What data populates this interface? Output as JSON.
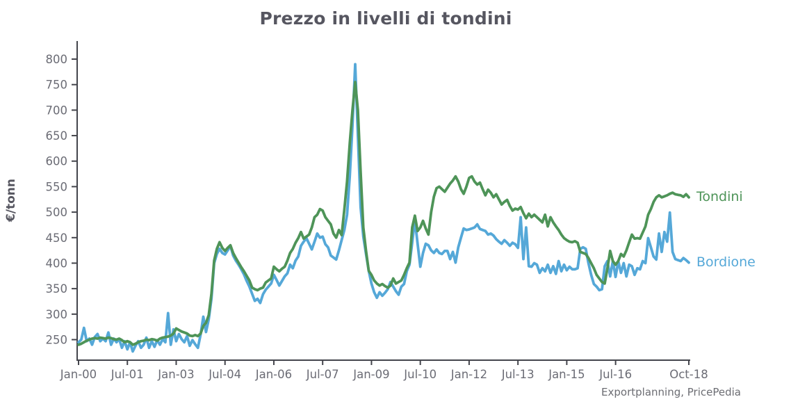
{
  "title": "Prezzo in livelli di tondini",
  "y_axis_label": "€/tonn",
  "attribution": "Exportplanning, PricePedia",
  "colors": {
    "tondini": "#4e9458",
    "bordione": "#55a8d8",
    "axis": "#44454c",
    "tick_text": "#6b6c75",
    "title_text": "#565660"
  },
  "chart_data": {
    "type": "line",
    "title": "Prezzo in livelli di tondini",
    "xlabel": "",
    "ylabel": "€/tonn",
    "x_unit": "month",
    "x_start": "Jan-2000",
    "x_end": "Oct-2018",
    "month_count": 226,
    "ylim": [
      208,
      833
    ],
    "grid": false,
    "legend_position": "line-end-labels-right",
    "yticks": [
      250,
      300,
      350,
      400,
      450,
      500,
      550,
      600,
      650,
      700,
      750,
      800
    ],
    "xticks": [
      {
        "label": "Jan-00",
        "month": 0
      },
      {
        "label": "Jul-01",
        "month": 18
      },
      {
        "label": "Jan-03",
        "month": 36
      },
      {
        "label": "Jul-04",
        "month": 54
      },
      {
        "label": "Jan-06",
        "month": 72
      },
      {
        "label": "Jul-07",
        "month": 90
      },
      {
        "label": "Jan-09",
        "month": 108
      },
      {
        "label": "Jul-10",
        "month": 126
      },
      {
        "label": "Jan-12",
        "month": 144
      },
      {
        "label": "Jul-13",
        "month": 162
      },
      {
        "label": "Jan-15",
        "month": 180
      },
      {
        "label": "Jul-16",
        "month": 198
      },
      {
        "label": "Oct-18",
        "month": 225
      }
    ],
    "series": [
      {
        "name": "Tondini",
        "color": "#4e9458",
        "values": [
          240,
          242,
          245,
          248,
          250,
          252,
          253,
          252,
          254,
          253,
          252,
          254,
          253,
          251,
          250,
          252,
          249,
          245,
          247,
          245,
          240,
          242,
          245,
          247,
          248,
          250,
          249,
          251,
          250,
          248,
          252,
          254,
          255,
          256,
          258,
          262,
          272,
          269,
          266,
          264,
          262,
          258,
          257,
          259,
          257,
          262,
          277,
          283,
          298,
          340,
          405,
          428,
          441,
          430,
          424,
          430,
          435,
          420,
          410,
          401,
          392,
          384,
          375,
          366,
          352,
          349,
          347,
          350,
          352,
          362,
          366,
          370,
          393,
          388,
          384,
          389,
          393,
          405,
          420,
          428,
          440,
          449,
          461,
          448,
          452,
          456,
          470,
          490,
          495,
          506,
          503,
          490,
          483,
          476,
          458,
          450,
          465,
          455,
          505,
          560,
          635,
          700,
          755,
          700,
          580,
          470,
          424,
          385,
          377,
          366,
          360,
          356,
          359,
          355,
          352,
          356,
          370,
          360,
          363,
          366,
          377,
          390,
          401,
          470,
          493,
          463,
          470,
          483,
          468,
          456,
          500,
          530,
          547,
          550,
          545,
          540,
          548,
          556,
          562,
          570,
          560,
          545,
          536,
          550,
          567,
          570,
          560,
          554,
          558,
          545,
          533,
          544,
          538,
          529,
          535,
          525,
          515,
          520,
          524,
          512,
          503,
          507,
          505,
          510,
          498,
          488,
          497,
          490,
          495,
          490,
          485,
          480,
          495,
          472,
          490,
          480,
          472,
          465,
          456,
          449,
          445,
          442,
          441,
          443,
          440,
          422,
          420,
          418,
          410,
          400,
          390,
          377,
          370,
          363,
          360,
          390,
          424,
          404,
          397,
          404,
          418,
          413,
          425,
          441,
          456,
          448,
          449,
          448,
          460,
          472,
          495,
          506,
          520,
          529,
          533,
          529,
          531,
          533,
          536,
          538,
          535,
          534,
          533,
          530,
          535,
          529
        ]
      },
      {
        "name": "Bordione",
        "color": "#55a8d8",
        "values": [
          245,
          250,
          273,
          247,
          252,
          240,
          255,
          261,
          247,
          252,
          247,
          264,
          240,
          252,
          245,
          251,
          234,
          247,
          231,
          245,
          227,
          238,
          247,
          234,
          240,
          254,
          234,
          247,
          236,
          249,
          240,
          251,
          245,
          302,
          240,
          270,
          247,
          261,
          251,
          245,
          257,
          238,
          249,
          241,
          234,
          260,
          295,
          265,
          290,
          330,
          400,
          418,
          428,
          420,
          417,
          425,
          434,
          415,
          405,
          397,
          388,
          378,
          365,
          354,
          340,
          326,
          330,
          322,
          339,
          348,
          354,
          360,
          377,
          367,
          356,
          365,
          374,
          380,
          397,
          390,
          405,
          413,
          434,
          442,
          449,
          438,
          427,
          442,
          458,
          450,
          452,
          437,
          431,
          415,
          411,
          407,
          425,
          445,
          465,
          495,
          570,
          670,
          790,
          650,
          510,
          452,
          418,
          385,
          360,
          343,
          332,
          343,
          336,
          342,
          349,
          363,
          354,
          345,
          338,
          354,
          359,
          384,
          397,
          440,
          485,
          438,
          393,
          420,
          438,
          435,
          425,
          420,
          427,
          420,
          418,
          424,
          424,
          408,
          422,
          401,
          431,
          450,
          468,
          465,
          466,
          468,
          470,
          476,
          467,
          465,
          463,
          456,
          458,
          454,
          447,
          442,
          438,
          445,
          440,
          434,
          440,
          437,
          430,
          490,
          408,
          470,
          394,
          393,
          400,
          397,
          381,
          390,
          384,
          397,
          381,
          394,
          379,
          404,
          384,
          397,
          386,
          393,
          388,
          388,
          390,
          428,
          431,
          428,
          400,
          377,
          359,
          354,
          347,
          349,
          394,
          404,
          374,
          404,
          373,
          404,
          381,
          400,
          374,
          397,
          394,
          377,
          390,
          388,
          404,
          400,
          449,
          431,
          413,
          407,
          458,
          422,
          461,
          442,
          499,
          422,
          408,
          406,
          404,
          410,
          406,
          401
        ]
      }
    ]
  }
}
